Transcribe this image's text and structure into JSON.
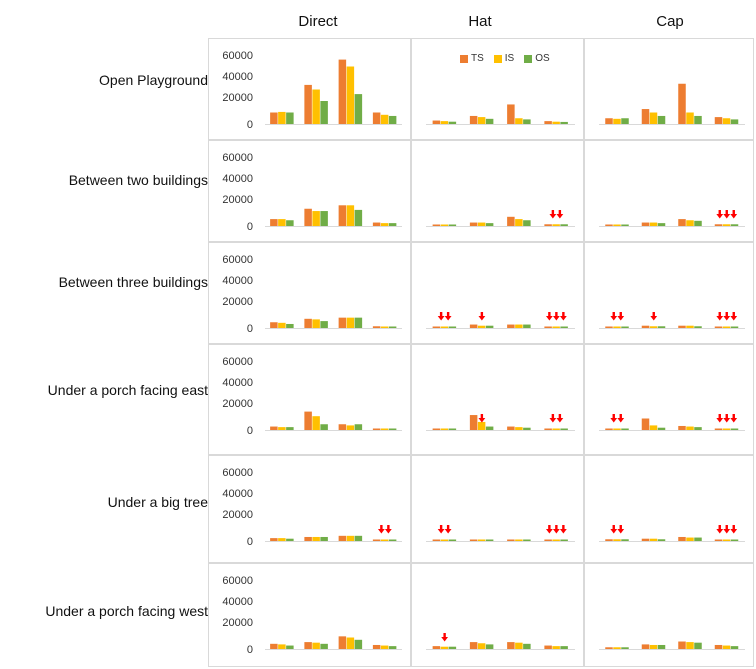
{
  "colors": {
    "TS": "#ed7d31",
    "IS": "#ffc000",
    "OS": "#70ad47",
    "arrow": "#ff0000"
  },
  "chart_data": {
    "type": "bar",
    "layout": "small-multiples",
    "columns": [
      "Direct",
      "Hat",
      "Cap"
    ],
    "rows": [
      "Open Playground",
      "Between two buildings",
      "Between three buildings",
      "Under a porch facing east",
      "Under a big tree",
      "Under a porch facing west"
    ],
    "series_names": [
      "TS",
      "IS",
      "OS"
    ],
    "y_ticks": [
      "60000",
      "40000",
      "20000",
      "0"
    ],
    "ylim": [
      0,
      70000
    ],
    "panels": [
      [
        {
          "groups": [
            [
              10000,
              10500,
              10000
            ],
            [
              34000,
              30000,
              20000
            ],
            [
              56000,
              50000,
              26000
            ],
            [
              10000,
              8000,
              7000
            ]
          ],
          "arrows": [
            0,
            0,
            0,
            0
          ]
        },
        {
          "groups": [
            [
              3000,
              2500,
              2000
            ],
            [
              7000,
              6000,
              4500
            ],
            [
              17000,
              5000,
              4000
            ],
            [
              2500,
              2000,
              1800
            ]
          ],
          "arrows": [
            0,
            0,
            0,
            0
          ]
        },
        {
          "groups": [
            [
              5000,
              4500,
              5000
            ],
            [
              13000,
              10000,
              7000
            ],
            [
              35000,
              10000,
              7000
            ],
            [
              6000,
              5000,
              4000
            ]
          ],
          "arrows": [
            0,
            0,
            0,
            0
          ]
        }
      ],
      [
        {
          "groups": [
            [
              6000,
              6000,
              5000
            ],
            [
              15000,
              13000,
              13000
            ],
            [
              18000,
              18000,
              14000
            ],
            [
              3000,
              2500,
              2500
            ]
          ],
          "arrows": [
            0,
            0,
            0,
            0
          ]
        },
        {
          "groups": [
            [
              1000,
              1000,
              1000
            ],
            [
              3000,
              3000,
              2500
            ],
            [
              8000,
              6000,
              5000
            ],
            [
              1500,
              1500,
              1500
            ]
          ],
          "arrows": [
            0,
            0,
            0,
            2
          ]
        },
        {
          "groups": [
            [
              1000,
              1000,
              1000
            ],
            [
              3000,
              3000,
              2500
            ],
            [
              6000,
              5000,
              4500
            ],
            [
              1500,
              1500,
              1500
            ]
          ],
          "arrows": [
            0,
            0,
            0,
            3
          ]
        }
      ],
      [
        {
          "groups": [
            [
              5000,
              4500,
              3500
            ],
            [
              8000,
              7500,
              6000
            ],
            [
              9000,
              9000,
              9000
            ],
            [
              1500,
              1200,
              1200
            ]
          ],
          "arrows": [
            0,
            0,
            0,
            0
          ]
        },
        {
          "groups": [
            [
              1000,
              1000,
              1000
            ],
            [
              3000,
              2000,
              2000
            ],
            [
              3000,
              3000,
              3000
            ],
            [
              1000,
              1000,
              1000
            ]
          ],
          "arrows": [
            2,
            1,
            0,
            3
          ]
        },
        {
          "groups": [
            [
              1000,
              1000,
              1000
            ],
            [
              2000,
              1500,
              1500
            ],
            [
              2000,
              2000,
              1500
            ],
            [
              1000,
              1000,
              1000
            ]
          ],
          "arrows": [
            2,
            1,
            0,
            3
          ]
        }
      ],
      [
        {
          "groups": [
            [
              3000,
              2500,
              2500
            ],
            [
              16000,
              12000,
              5000
            ],
            [
              5000,
              4000,
              5000
            ],
            [
              1000,
              1000,
              1000
            ]
          ],
          "arrows": [
            0,
            0,
            0,
            0
          ]
        },
        {
          "groups": [
            [
              1000,
              1000,
              1000
            ],
            [
              13000,
              7000,
              3000
            ],
            [
              3000,
              2500,
              2000
            ],
            [
              1000,
              1000,
              1000
            ]
          ],
          "arrows": [
            0,
            1,
            0,
            2
          ]
        },
        {
          "groups": [
            [
              1000,
              1000,
              1000
            ],
            [
              10000,
              4000,
              2000
            ],
            [
              3500,
              3000,
              2500
            ],
            [
              1000,
              1000,
              1000
            ]
          ],
          "arrows": [
            2,
            0,
            0,
            3
          ]
        }
      ],
      [
        {
          "groups": [
            [
              2500,
              2500,
              2000
            ],
            [
              3500,
              3500,
              3500
            ],
            [
              4500,
              4500,
              4500
            ],
            [
              1000,
              1000,
              1000
            ]
          ],
          "arrows": [
            0,
            0,
            0,
            2
          ]
        },
        {
          "groups": [
            [
              800,
              800,
              800
            ],
            [
              1000,
              1000,
              1000
            ],
            [
              1200,
              1200,
              1200
            ],
            [
              800,
              800,
              800
            ]
          ],
          "arrows": [
            2,
            0,
            0,
            3
          ]
        },
        {
          "groups": [
            [
              1500,
              1500,
              1500
            ],
            [
              2000,
              2000,
              1500
            ],
            [
              3500,
              3000,
              3000
            ],
            [
              1000,
              1000,
              1000
            ]
          ],
          "arrows": [
            2,
            0,
            0,
            3
          ]
        }
      ],
      [
        {
          "groups": [
            [
              4500,
              4000,
              3000
            ],
            [
              6000,
              5500,
              4500
            ],
            [
              11000,
              10000,
              8000
            ],
            [
              3500,
              3000,
              2500
            ]
          ],
          "arrows": [
            0,
            0,
            0,
            0
          ]
        },
        {
          "groups": [
            [
              2500,
              2000,
              2000
            ],
            [
              6000,
              5000,
              4000
            ],
            [
              6000,
              5500,
              4500
            ],
            [
              3000,
              2500,
              2500
            ]
          ],
          "arrows": [
            1,
            0,
            0,
            0
          ]
        },
        {
          "groups": [
            [
              1500,
              1500,
              1500
            ],
            [
              4000,
              3500,
              3500
            ],
            [
              6500,
              6000,
              5500
            ],
            [
              3500,
              3000,
              2500
            ]
          ],
          "arrows": [
            0,
            0,
            0,
            0
          ]
        }
      ]
    ]
  }
}
